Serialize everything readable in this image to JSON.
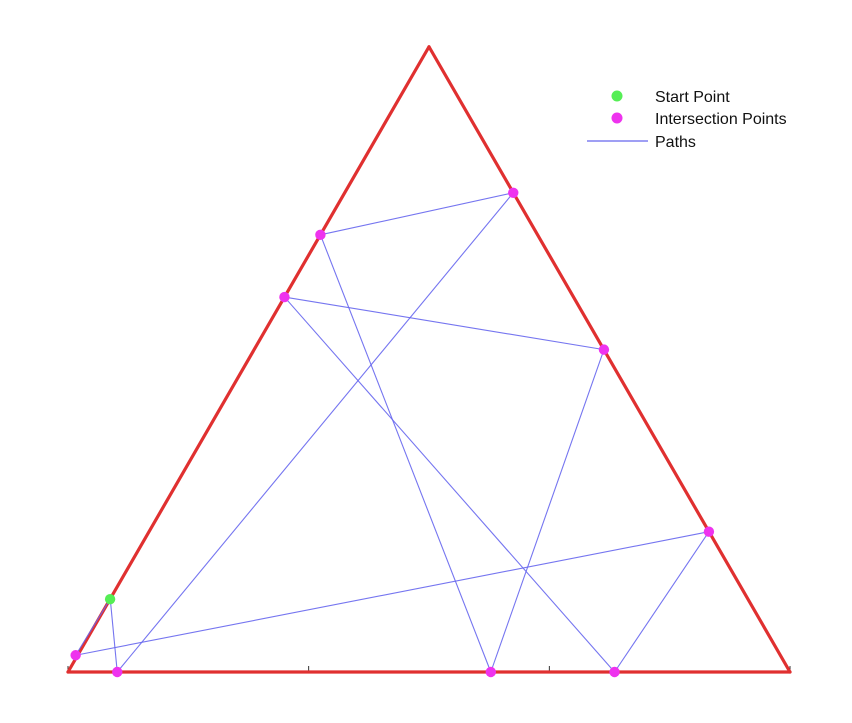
{
  "chart_data": {
    "type": "line",
    "title": "",
    "xlabel": "",
    "ylabel": "",
    "xlim": [
      0,
      1
    ],
    "ylim": [
      0,
      0.866
    ],
    "grid": false,
    "x_ticks": [
      0.3333,
      0.6667
    ],
    "legend": {
      "placement": "top-right",
      "entries": [
        {
          "label": "Start Point",
          "marker": "dot",
          "color": "#55ee55"
        },
        {
          "label": "Intersection Points",
          "marker": "dot",
          "color": "#ee33ee"
        },
        {
          "label": "Paths",
          "marker": "line",
          "color": "#6666ee"
        }
      ]
    },
    "triangle": {
      "color": "#e03030",
      "vertices": [
        [
          0,
          0
        ],
        [
          1,
          0
        ],
        [
          0.5,
          0.866
        ]
      ]
    },
    "start_point": {
      "x": 0.0583,
      "y": 0.1009
    },
    "path_points": [
      {
        "x": 0.0583,
        "y": 0.1009
      },
      {
        "x": 0.0106,
        "y": 0.0232
      },
      {
        "x": 0.8877,
        "y": 0.1943
      },
      {
        "x": 0.757,
        "y": 0.0
      },
      {
        "x": 0.2998,
        "y": 0.5193
      },
      {
        "x": 0.7423,
        "y": 0.4465
      },
      {
        "x": 0.5856,
        "y": 0.0
      },
      {
        "x": 0.3496,
        "y": 0.6055
      },
      {
        "x": 0.6167,
        "y": 0.6637
      },
      {
        "x": 0.0682,
        "y": 0.0
      },
      {
        "x": 0.0585,
        "y": 0.1013
      }
    ],
    "series": [
      {
        "name": "Paths",
        "color": "#6666ee"
      }
    ]
  }
}
